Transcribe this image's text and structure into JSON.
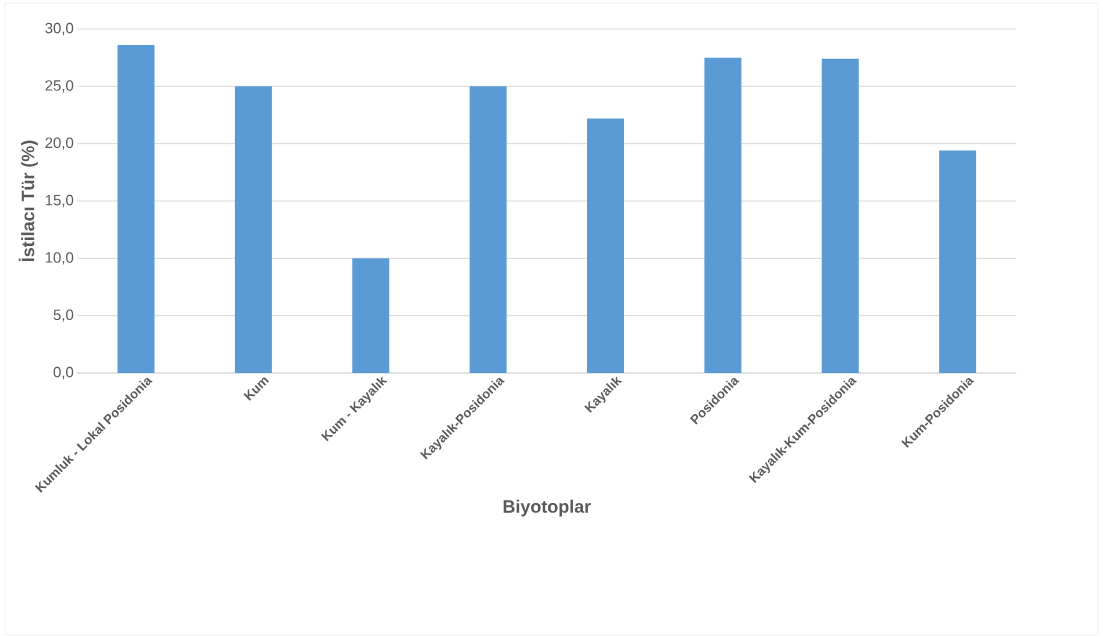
{
  "chart_data": {
    "type": "bar",
    "xlabel": "Biyotoplar",
    "ylabel": "İstilacı Tür (%)",
    "categories": [
      "Kumluk - Lokal Posidonia",
      "Kum",
      "Kum - Kayalık",
      "Kayalık-Posidonia",
      "Kayalık",
      "Posidonia",
      "Kayalık-Kum-Posidonia",
      "Kum-Posidonia"
    ],
    "values": [
      28.6,
      25.0,
      10.0,
      25.0,
      22.2,
      27.5,
      27.4,
      19.4
    ],
    "color": "#5b9bd5",
    "ylim": [
      0,
      30
    ],
    "yticks": [
      {
        "value": 0,
        "label": "0,0"
      },
      {
        "value": 5,
        "label": "5,0"
      },
      {
        "value": 10,
        "label": "10,0"
      },
      {
        "value": 15,
        "label": "15,0"
      },
      {
        "value": 20,
        "label": "20,0"
      },
      {
        "value": 25,
        "label": "25,0"
      },
      {
        "value": 30,
        "label": "30,0"
      }
    ],
    "grid": "y"
  }
}
